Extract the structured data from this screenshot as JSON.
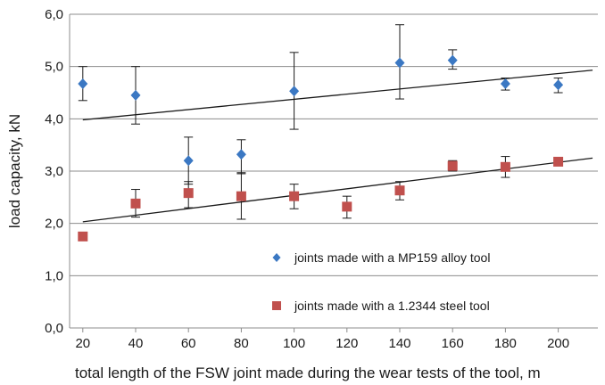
{
  "chart_data": {
    "type": "scatter",
    "xlabel": "total length of the FSW joint made during the wear tests of the tool, m",
    "ylabel": "load capacity, kN",
    "xlim": [
      15,
      215
    ],
    "ylim": [
      0,
      6
    ],
    "x_ticks": [
      20,
      40,
      60,
      80,
      100,
      120,
      140,
      160,
      180,
      200
    ],
    "y_ticks": [
      0,
      1,
      2,
      3,
      4,
      5,
      6
    ],
    "y_tick_labels": [
      "0,0",
      "1,0",
      "2,0",
      "3,0",
      "4,0",
      "5,0",
      "6,0"
    ],
    "grid": "horizontal",
    "legend_position": "lower-right",
    "series": [
      {
        "name": "joints made with a MP159 alloy tool",
        "marker": "diamond",
        "color": "#3b78c3",
        "x": [
          20,
          40,
          60,
          80,
          100,
          140,
          160,
          180,
          200
        ],
        "y": [
          4.67,
          4.45,
          3.2,
          3.32,
          4.53,
          5.07,
          5.12,
          4.67,
          4.65
        ],
        "err_low": [
          4.35,
          3.9,
          2.75,
          2.95,
          3.8,
          4.38,
          4.95,
          4.55,
          4.5
        ],
        "err_high": [
          5.0,
          5.0,
          3.65,
          3.6,
          5.27,
          5.8,
          5.32,
          4.78,
          4.78
        ],
        "trendline": {
          "x": [
            20,
            213
          ],
          "y": [
            3.98,
            4.93
          ]
        }
      },
      {
        "name": "joints made with a 1.2344 steel tool",
        "marker": "square",
        "color": "#c0504d",
        "x": [
          20,
          40,
          60,
          80,
          100,
          120,
          140,
          160,
          180,
          200
        ],
        "y": [
          1.75,
          2.38,
          2.58,
          2.52,
          2.52,
          2.32,
          2.63,
          3.1,
          3.08,
          3.18
        ],
        "err_low": [
          null,
          2.12,
          2.3,
          2.08,
          2.28,
          2.1,
          2.45,
          3.0,
          2.88,
          null
        ],
        "err_high": [
          null,
          2.65,
          2.8,
          2.97,
          2.75,
          2.52,
          2.8,
          3.2,
          3.28,
          null
        ],
        "trendline": {
          "x": [
            20,
            213
          ],
          "y": [
            2.03,
            3.25
          ]
        }
      }
    ]
  }
}
